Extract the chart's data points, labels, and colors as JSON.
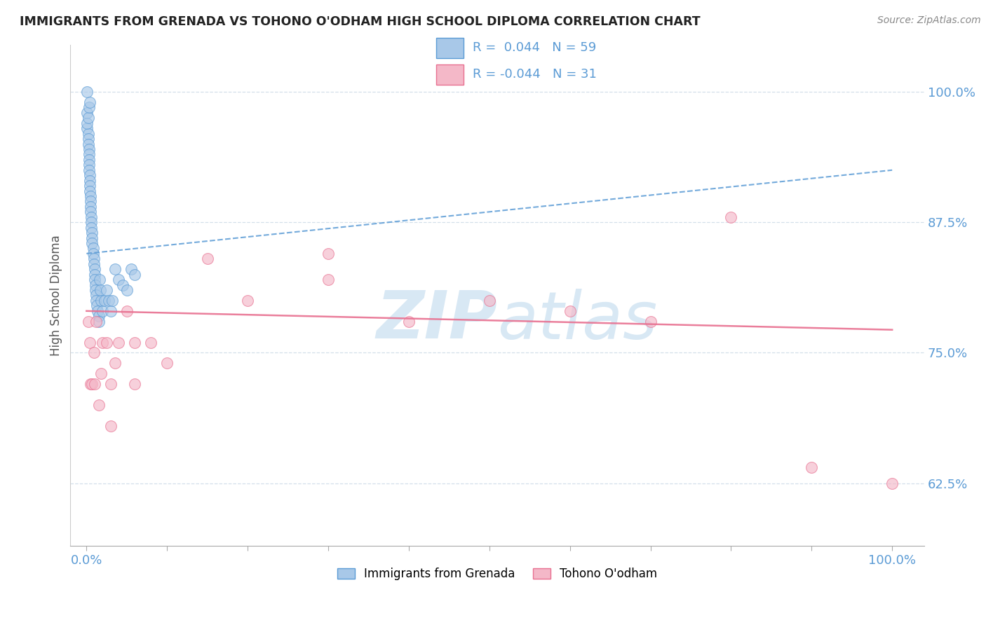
{
  "title": "IMMIGRANTS FROM GRENADA VS TOHONO O'ODHAM HIGH SCHOOL DIPLOMA CORRELATION CHART",
  "source": "Source: ZipAtlas.com",
  "ylabel": "High School Diploma",
  "blue_label": "Immigrants from Grenada",
  "pink_label": "Tohono O'odham",
  "blue_R": 0.044,
  "blue_N": 59,
  "pink_R": -0.044,
  "pink_N": 31,
  "xlim": [
    -0.02,
    1.04
  ],
  "ylim": [
    0.565,
    1.045
  ],
  "yticks": [
    0.625,
    0.75,
    0.875,
    1.0
  ],
  "ytick_labels": [
    "62.5%",
    "75.0%",
    "87.5%",
    "100.0%"
  ],
  "xtick_positions": [
    0.0,
    0.1,
    0.2,
    0.3,
    0.4,
    0.5,
    0.6,
    0.7,
    0.8,
    0.9,
    1.0
  ],
  "blue_color": "#a8c8e8",
  "blue_edge_color": "#5b9bd5",
  "pink_color": "#f4b8c8",
  "pink_edge_color": "#e87090",
  "blue_trend_color": "#5b9bd5",
  "pink_trend_color": "#e87090",
  "axis_label_color": "#5b9bd5",
  "grid_color": "#d0dce8",
  "watermark_color": "#d8e8f4",
  "background": "#ffffff",
  "blue_x": [
    0.001,
    0.001,
    0.001,
    0.002,
    0.002,
    0.002,
    0.003,
    0.003,
    0.003,
    0.003,
    0.003,
    0.004,
    0.004,
    0.004,
    0.004,
    0.005,
    0.005,
    0.005,
    0.005,
    0.006,
    0.006,
    0.006,
    0.007,
    0.007,
    0.007,
    0.008,
    0.008,
    0.009,
    0.009,
    0.01,
    0.01,
    0.01,
    0.011,
    0.011,
    0.012,
    0.012,
    0.013,
    0.014,
    0.015,
    0.015,
    0.016,
    0.017,
    0.018,
    0.02,
    0.022,
    0.025,
    0.028,
    0.03,
    0.032,
    0.035,
    0.04,
    0.045,
    0.05,
    0.055,
    0.06,
    0.001,
    0.002,
    0.003,
    0.004
  ],
  "blue_y": [
    1.0,
    0.98,
    0.965,
    0.96,
    0.955,
    0.95,
    0.945,
    0.94,
    0.935,
    0.93,
    0.925,
    0.92,
    0.915,
    0.91,
    0.905,
    0.9,
    0.895,
    0.89,
    0.885,
    0.88,
    0.875,
    0.87,
    0.865,
    0.86,
    0.855,
    0.85,
    0.845,
    0.84,
    0.835,
    0.83,
    0.825,
    0.82,
    0.815,
    0.81,
    0.805,
    0.8,
    0.795,
    0.79,
    0.785,
    0.78,
    0.82,
    0.81,
    0.8,
    0.79,
    0.8,
    0.81,
    0.8,
    0.79,
    0.8,
    0.83,
    0.82,
    0.815,
    0.81,
    0.83,
    0.825,
    0.97,
    0.975,
    0.985,
    0.99
  ],
  "pink_x": [
    0.002,
    0.004,
    0.005,
    0.007,
    0.009,
    0.01,
    0.012,
    0.015,
    0.018,
    0.02,
    0.025,
    0.03,
    0.035,
    0.04,
    0.05,
    0.06,
    0.08,
    0.1,
    0.15,
    0.2,
    0.3,
    0.4,
    0.5,
    0.6,
    0.7,
    0.8,
    0.9,
    1.0,
    0.03,
    0.06,
    0.3
  ],
  "pink_y": [
    0.78,
    0.76,
    0.72,
    0.72,
    0.75,
    0.72,
    0.78,
    0.7,
    0.73,
    0.76,
    0.76,
    0.72,
    0.74,
    0.76,
    0.79,
    0.72,
    0.76,
    0.74,
    0.84,
    0.8,
    0.82,
    0.78,
    0.8,
    0.79,
    0.78,
    0.88,
    0.64,
    0.625,
    0.68,
    0.76,
    0.845
  ],
  "blue_trend_x0": 0.0,
  "blue_trend_y0": 0.845,
  "blue_trend_x1": 1.0,
  "blue_trend_y1": 0.925,
  "pink_trend_x0": 0.0,
  "pink_trend_y0": 0.79,
  "pink_trend_x1": 1.0,
  "pink_trend_y1": 0.772
}
